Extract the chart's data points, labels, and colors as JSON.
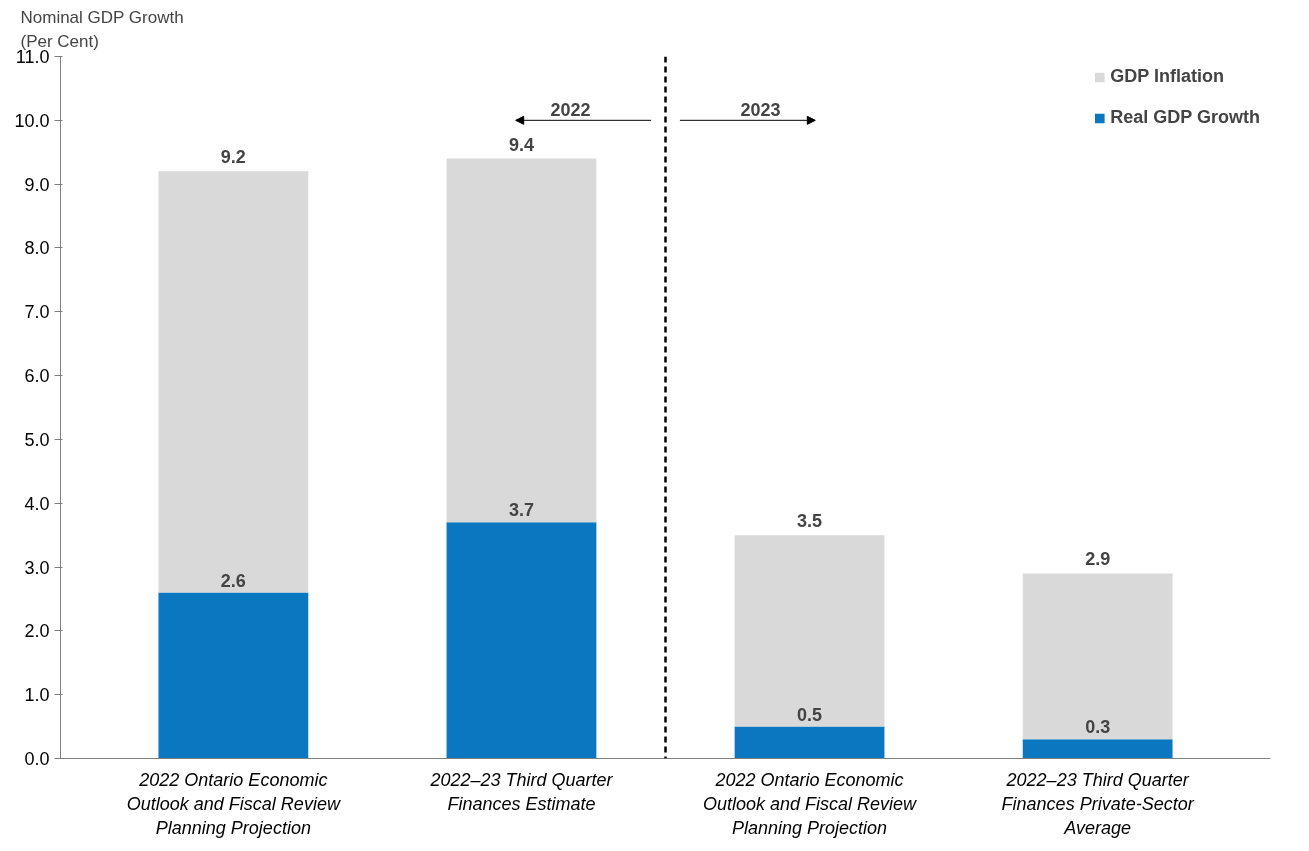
{
  "chart_data": {
    "type": "bar",
    "stacked": true,
    "ylabel": "Nominal GDP Growth\n(Per Cent)",
    "categories": [
      "2022 Ontario Economic Outlook and Fiscal Review Planning Projection",
      "2022–23 Third Quarter Finances Estimate",
      "2022 Ontario Economic Outlook and Fiscal Review Planning Projection",
      "2022–23 Third Quarter Finances Private-Sector Average"
    ],
    "series": [
      {
        "name": "Real GDP Growth",
        "color": "#0a77c0",
        "values": [
          2.6,
          3.7,
          0.5,
          0.3
        ],
        "value_labels": [
          "2.6",
          "3.7",
          "0.5",
          "0.3"
        ]
      },
      {
        "name": "GDP Inflation",
        "color": "#d9d9d9",
        "values": [
          6.6,
          5.7,
          3.0,
          2.6
        ]
      }
    ],
    "totals": [
      "9.2",
      "9.4",
      "3.5",
      "2.9"
    ],
    "ylim": [
      0,
      11
    ],
    "yticks": [
      {
        "value": 0,
        "label": "0.0"
      },
      {
        "value": 1,
        "label": "1.0"
      },
      {
        "value": 2,
        "label": "2.0"
      },
      {
        "value": 3,
        "label": "3.0"
      },
      {
        "value": 4,
        "label": "4.0"
      },
      {
        "value": 5,
        "label": "5.0"
      },
      {
        "value": 6,
        "label": "6.0"
      },
      {
        "value": 7,
        "label": "7.0"
      },
      {
        "value": 8,
        "label": "8.0"
      },
      {
        "value": 9,
        "label": "9.0"
      },
      {
        "value": 10,
        "label": "10.0"
      },
      {
        "value": 11,
        "label": "11.0"
      }
    ],
    "annotations": [
      "2022",
      "2023"
    ],
    "legend": "top right",
    "grid": false
  }
}
